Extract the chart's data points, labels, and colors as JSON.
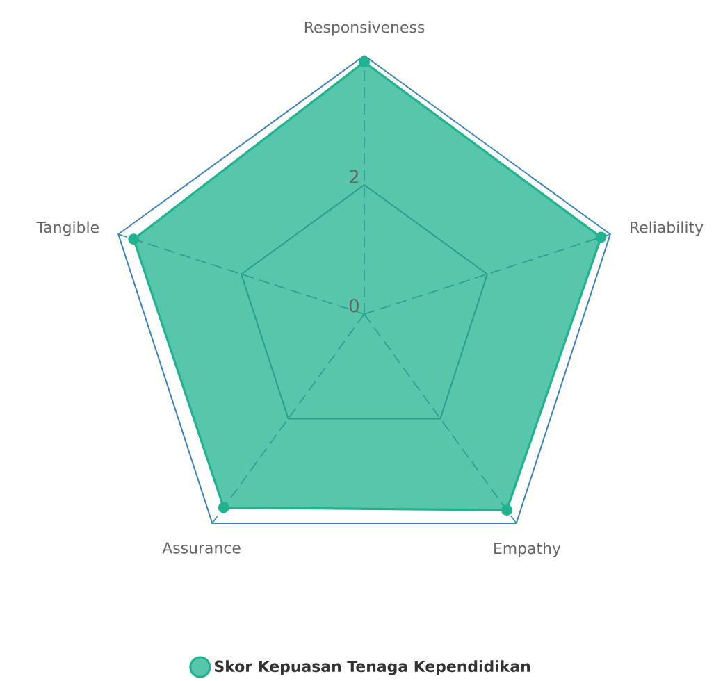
{
  "chart_data": {
    "type": "radar",
    "categories": [
      "Responsiveness",
      "Reliability",
      "Empathy",
      "Assurance",
      "Tangible"
    ],
    "series": [
      {
        "name": "Skor Kepuasan Tenaga Kependidikan",
        "color": "#1fb38f",
        "values": [
          3.9,
          3.85,
          3.75,
          3.7,
          3.75
        ]
      }
    ],
    "ylim": [
      0,
      4
    ],
    "yticks": [
      0,
      2
    ],
    "grid": true,
    "legend": "bottom",
    "marker": "circle",
    "line_style": "solid"
  }
}
